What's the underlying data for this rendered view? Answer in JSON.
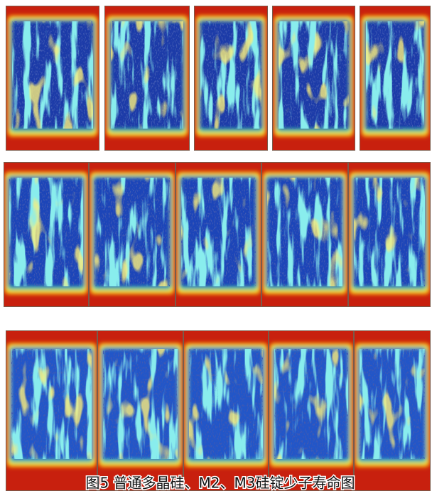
{
  "caption": "图5 普通多晶硅、M2、M3硅锭少子寿命图"
}
